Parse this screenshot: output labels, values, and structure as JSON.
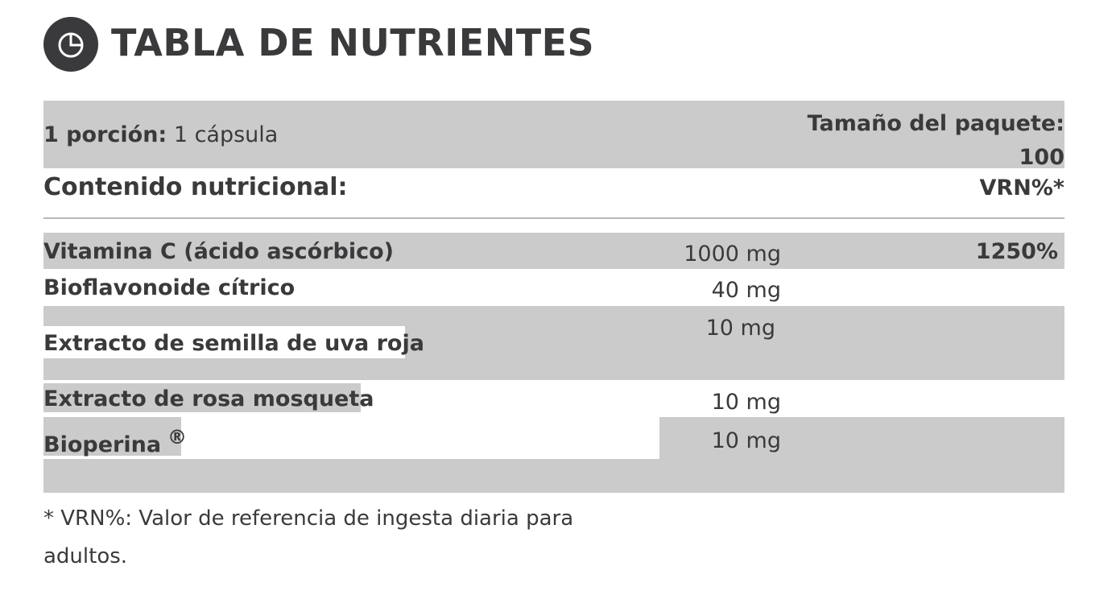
{
  "header": {
    "title": "TABLA DE NUTRIENTES",
    "icon": "pie-chart-icon",
    "icon_color": "#3a3a3c"
  },
  "serving": {
    "label": "1 porción:",
    "value": "1 cápsula"
  },
  "package": {
    "label": "Tamaño del paquete:",
    "value": "100"
  },
  "table_header": {
    "content_label": "Contenido nutricional:",
    "vrn_label": "VRN%*"
  },
  "nutrients": [
    {
      "name": "Vitamina C (ácido ascórbico)",
      "amount": "1000 mg",
      "vrn": "1250%"
    },
    {
      "name": "Bioflavonoide cítrico",
      "amount": "40 mg",
      "vrn": ""
    },
    {
      "name": "Extracto de semilla de uva roja",
      "amount": "10 mg",
      "vrn": ""
    },
    {
      "name": "Extracto de rosa mosqueta",
      "amount": "10 mg",
      "vrn": ""
    },
    {
      "name": "Bioperina",
      "name_suffix": "®",
      "amount": "10 mg",
      "vrn": ""
    }
  ],
  "footnote": "* VRN%: Valor de referencia de ingesta diaria para adultos.",
  "colors": {
    "text": "#3a3a3c",
    "band": "#cbcbcb",
    "background": "#ffffff"
  }
}
